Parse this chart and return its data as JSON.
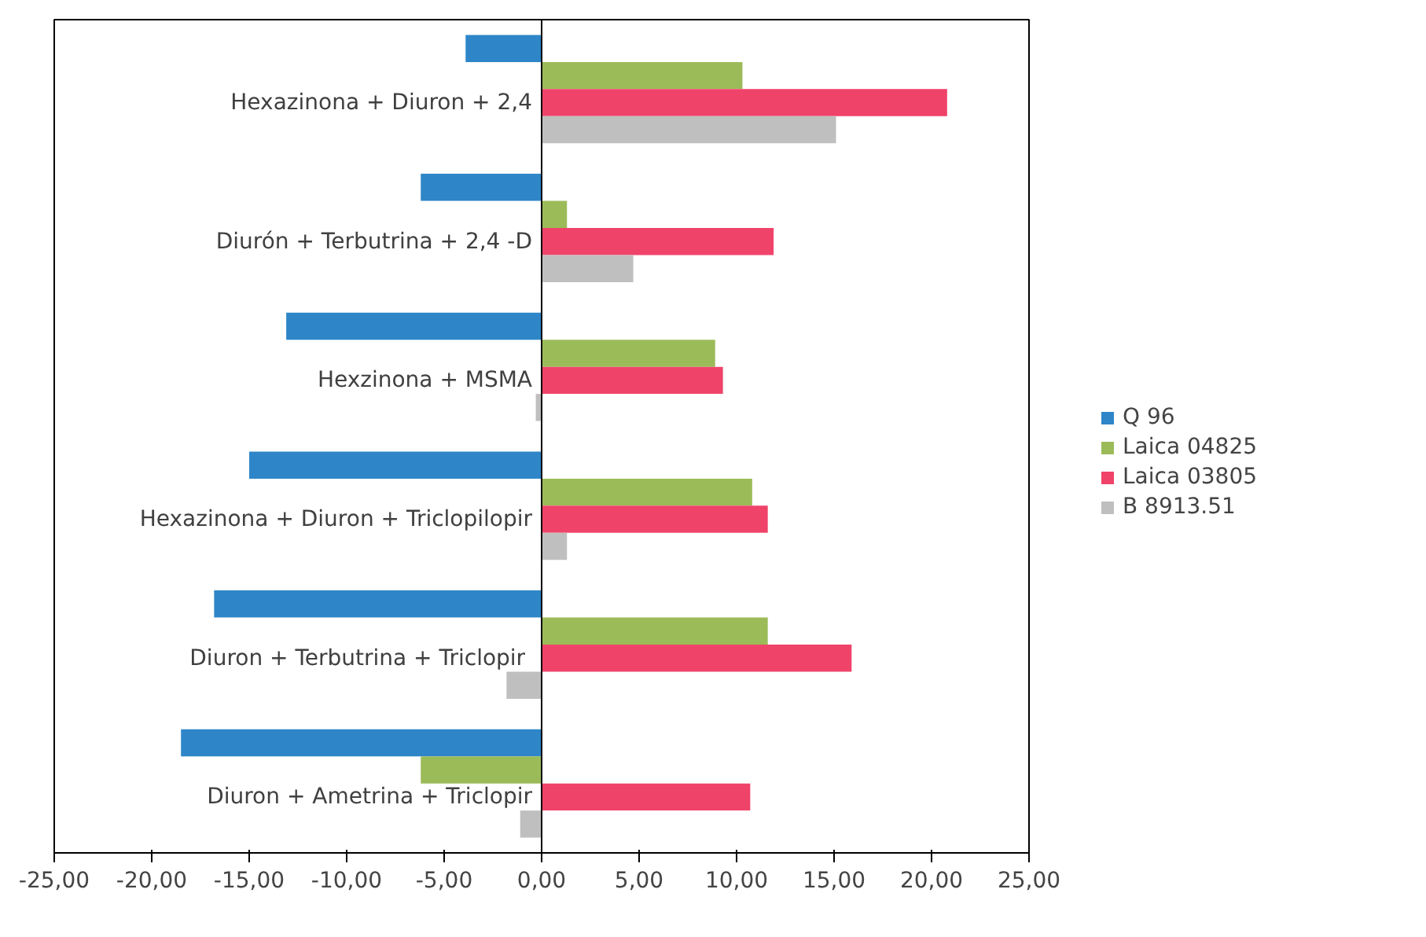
{
  "chart_data": {
    "type": "bar",
    "orientation": "horizontal",
    "categories": [
      "Hexazinona + Diuron + 2,4",
      "Diurón + Terbutrina + 2,4 -D",
      "Hexzinona + MSMA",
      "Hexazinona + Diuron + Triclopilopir",
      "Diuron  + Terbutrina + Triclopir",
      "Diuron + Ametrina + Triclopir"
    ],
    "series": [
      {
        "name": "Q 96",
        "color": "#2e86c8",
        "values": [
          -3.9,
          -6.2,
          -13.1,
          -15.0,
          -16.8,
          -18.5
        ]
      },
      {
        "name": "Laica 04825",
        "color": "#9bbb59",
        "values": [
          10.3,
          1.3,
          8.9,
          10.8,
          11.6,
          -6.2
        ]
      },
      {
        "name": "Laica 03805",
        "color": "#f0436a",
        "values": [
          20.8,
          11.9,
          9.3,
          11.6,
          15.9,
          10.7
        ]
      },
      {
        "name": "B 8913.51",
        "color": "#bfbfbf",
        "values": [
          15.1,
          4.7,
          -0.3,
          1.3,
          -1.8,
          -1.1
        ]
      }
    ],
    "xlim": [
      -25,
      25
    ],
    "xticks": [
      {
        "value": -25,
        "label": "-25,00"
      },
      {
        "value": -20,
        "label": "-20,00"
      },
      {
        "value": -15,
        "label": "-15,00"
      },
      {
        "value": -10,
        "label": "-10,00"
      },
      {
        "value": -5,
        "label": "-5,00"
      },
      {
        "value": 0,
        "label": "0,00"
      },
      {
        "value": 5,
        "label": "5,00"
      },
      {
        "value": 10,
        "label": "10,00"
      },
      {
        "value": 15,
        "label": "15,00"
      },
      {
        "value": 20,
        "label": "20,00"
      },
      {
        "value": 25,
        "label": "25,00"
      }
    ],
    "grid": false,
    "legend": "right"
  }
}
